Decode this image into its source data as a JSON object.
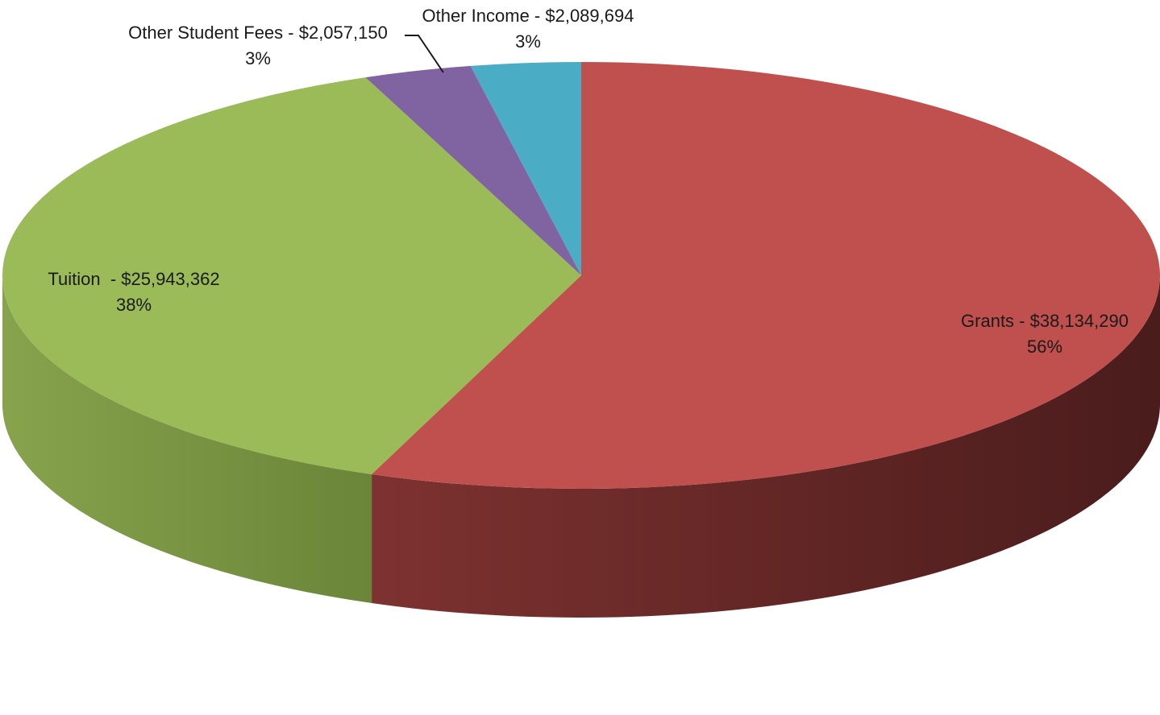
{
  "chart_data": {
    "type": "pie",
    "style": "3d-exploded-none",
    "title": "",
    "start_angle": "12 o'clock",
    "direction": "clockwise",
    "slices": [
      {
        "name": "Grants",
        "value": 38134290,
        "percent": 56,
        "label_line1": "Grants - $38,134,290",
        "label_line2": "56%",
        "color": "#C0504D",
        "side_color_light": "#7D3230",
        "side_color_dark": "#4A1C1C"
      },
      {
        "name": "Tuition",
        "value": 25943362,
        "percent": 38,
        "label_line1": "Tuition  - $25,943,362",
        "label_line2": "38%",
        "color": "#9BBB59",
        "side_color_light": "#87A34C",
        "side_color_dark": "#6B8539"
      },
      {
        "name": "Other Student Fees",
        "value": 2057150,
        "percent": 3,
        "label_line1": "Other Student Fees - $2,057,150",
        "label_line2": "3%",
        "color": "#8064A2",
        "side_color_light": "#634D80",
        "side_color_dark": "#4B3A61"
      },
      {
        "name": "Other Income",
        "value": 2089694,
        "percent": 3,
        "label_line1": "Other Income - $2,089,694",
        "label_line2": "3%",
        "color": "#4BACC6",
        "side_color_light": "#3A8598",
        "side_color_dark": "#2C6574"
      }
    ],
    "legend": "none"
  }
}
